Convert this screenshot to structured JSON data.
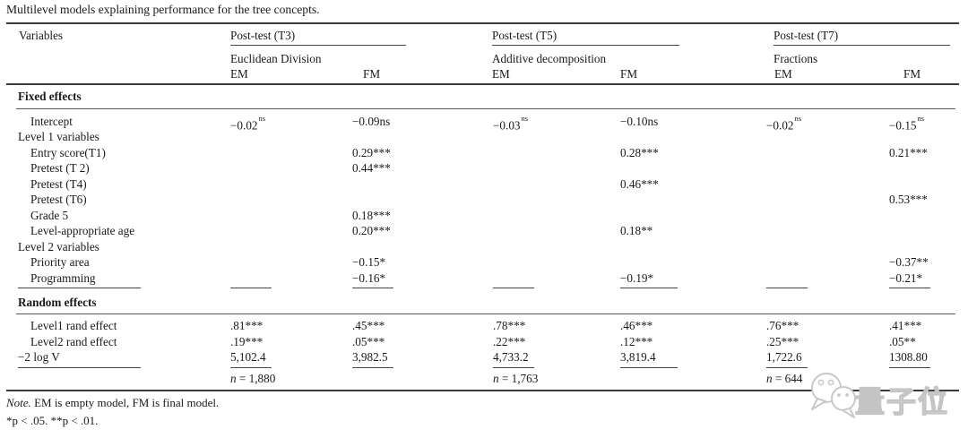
{
  "title": "Multilevel models explaining performance for the tree concepts.",
  "header": {
    "variables_label": "Variables",
    "groups": [
      {
        "post_test": "Post-test (T3)",
        "concept": "Euclidean Division",
        "em": "EM",
        "fm": "FM"
      },
      {
        "post_test": "Post-test (T5)",
        "concept": "Additive decomposition",
        "em": "EM",
        "fm": "FM"
      },
      {
        "post_test": "Post-test (T7)",
        "concept": "Fractions",
        "em": "EM",
        "fm": "FM"
      }
    ]
  },
  "sections": [
    {
      "name": "Fixed effects"
    },
    {
      "name": "Random effects"
    }
  ],
  "fixed_rows": [
    {
      "label": "Intercept",
      "indent": true,
      "cells": [
        {
          "v": "−0.02",
          "sup": "ns"
        },
        "−0.09ns",
        {
          "v": "−0.03",
          "sup": "ns"
        },
        "−0.10ns",
        {
          "v": "−0.02",
          "sup": "ns"
        },
        {
          "v": "−0.15",
          "sup": "ns"
        }
      ]
    },
    {
      "label": "Level 1 variables",
      "indent": false,
      "cells": [
        "",
        "",
        "",
        "",
        "",
        ""
      ]
    },
    {
      "label": "Entry score(T1)",
      "indent": true,
      "cells": [
        "",
        "0.29***",
        "",
        "0.28***",
        "",
        "0.21***"
      ]
    },
    {
      "label": "Pretest (T 2)",
      "indent": true,
      "cells": [
        "",
        "0.44***",
        "",
        "",
        "",
        ""
      ]
    },
    {
      "label": "Pretest (T4)",
      "indent": true,
      "cells": [
        "",
        "",
        "",
        "0.46***",
        "",
        ""
      ]
    },
    {
      "label": "Pretest (T6)",
      "indent": true,
      "cells": [
        "",
        "",
        "",
        "",
        "",
        "0.53***"
      ]
    },
    {
      "label": "Grade 5",
      "indent": true,
      "cells": [
        "",
        "0.18***",
        "",
        "",
        "",
        ""
      ]
    },
    {
      "label": "Level-appropriate age",
      "indent": true,
      "cells": [
        "",
        "0.20***",
        "",
        "0.18**",
        "",
        ""
      ]
    },
    {
      "label": "Level 2 variables",
      "indent": false,
      "cells": [
        "",
        "",
        "",
        "",
        "",
        ""
      ]
    },
    {
      "label": "Priority area",
      "indent": true,
      "cells": [
        "",
        "−0.15*",
        "",
        "",
        "",
        "−0.37**"
      ]
    },
    {
      "label": "Programming",
      "indent": true,
      "cells": [
        "",
        "−0.16*",
        "",
        "−0.19*",
        "",
        "−0.21*"
      ]
    }
  ],
  "random_rows": [
    {
      "label": "Level1 rand effect",
      "indent": true,
      "cells": [
        ".81***",
        ".45***",
        ".78***",
        ".46***",
        ".76***",
        ".41***"
      ]
    },
    {
      "label": "Level2 rand effect",
      "indent": true,
      "cells": [
        ".19***",
        ".05***",
        ".22***",
        ".12***",
        ".25***",
        ".05**"
      ]
    },
    {
      "label": "−2 log V",
      "indent": false,
      "cells": [
        "5,102.4",
        "3,982.5",
        "4,733.2",
        "3,819.4",
        "1,722.6",
        "1308.80"
      ]
    }
  ],
  "sample_sizes": [
    "n = 1,880",
    "n = 1,763",
    "n = 644"
  ],
  "footnotes": {
    "note_prefix": "Note.",
    "note_body": " EM is empty model, FM is final model.",
    "significance": "*p < .05. **p < .01."
  },
  "watermark": {
    "text": "量子位"
  },
  "colors": {
    "text": "#1a1a1a",
    "rule": "#3a3a3a",
    "watermark": "#c4c4c4"
  }
}
